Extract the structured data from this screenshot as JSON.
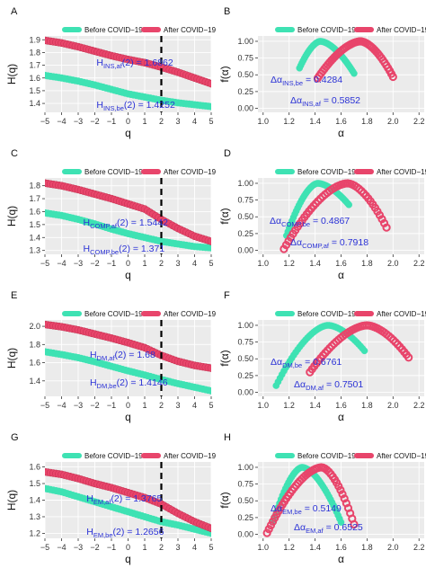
{
  "colors": {
    "before": "#3ee2b3",
    "after": "#e8456b",
    "after_stroke": "#c4304f",
    "panel_bg": "#ebebeb",
    "grid_major": "#ffffff",
    "annotation": "#2b32d6",
    "vline": "#000000"
  },
  "legend": {
    "before": "Before COVID−19",
    "after": "After COVID−19"
  },
  "chart_data": [
    {
      "panel": "A",
      "type": "line",
      "xlabel": "q",
      "ylabel": "H(q)",
      "xlim": [
        -5,
        5
      ],
      "ylim": [
        1.33,
        1.93
      ],
      "x_ticks": [
        -5,
        -4,
        -3,
        -2,
        -1,
        0,
        1,
        2,
        3,
        4,
        5
      ],
      "y_ticks": [
        1.4,
        1.5,
        1.6,
        1.7,
        1.8,
        1.9
      ],
      "vline": 2,
      "series": [
        {
          "name": "Before COVID−19",
          "x": [
            -5,
            -4,
            -3,
            -2,
            -1,
            0,
            1,
            2,
            3,
            4,
            5
          ],
          "values": [
            1.62,
            1.6,
            1.575,
            1.545,
            1.51,
            1.475,
            1.45,
            1.425,
            1.405,
            1.39,
            1.375
          ]
        },
        {
          "name": "After COVID−19",
          "x": [
            -5,
            -4,
            -3,
            -2,
            -1,
            0,
            1,
            2,
            3,
            4,
            5
          ],
          "values": [
            1.895,
            1.875,
            1.845,
            1.81,
            1.775,
            1.745,
            1.72,
            1.685,
            1.645,
            1.6,
            1.555
          ]
        }
      ],
      "annotations": [
        {
          "main": "H",
          "sub": "INS,af",
          "rest": "(2) = 1.6862"
        },
        {
          "main": "H",
          "sub": "INS,be",
          "rest": "(2) = 1.4252"
        }
      ]
    },
    {
      "panel": "B",
      "type": "scatter",
      "xlabel": "α",
      "ylabel": "f(α)",
      "xlim": [
        0.96,
        2.24
      ],
      "ylim": [
        -0.06,
        1.08
      ],
      "x_ticks": [
        1.0,
        1.2,
        1.4,
        1.6,
        1.8,
        2.0,
        2.2
      ],
      "x_tick_labels": [
        "1.0",
        "1.2",
        "1.4",
        "1.6",
        "1.8",
        "2.0",
        "2.2"
      ],
      "y_ticks": [
        0.0,
        0.25,
        0.5,
        0.75,
        1.0
      ],
      "y_tick_labels": [
        "0.00",
        "0.25",
        "0.50",
        "0.75",
        "1.00"
      ],
      "series": [
        {
          "name": "Before COVID−19",
          "alpha_min": 1.28,
          "alpha_peak": 1.44,
          "alpha_max": 1.7,
          "f_left": 0.6,
          "f_right": 0.52
        },
        {
          "name": "After COVID−19",
          "alpha_min": 1.42,
          "alpha_peak": 1.75,
          "alpha_max": 2.0,
          "f_left": 0.45,
          "f_right": 0.47
        }
      ],
      "annotations": [
        {
          "main": "Δα",
          "sub": "INS,be",
          "rest": " = 0.4284"
        },
        {
          "main": "Δα",
          "sub": "INS,af",
          "rest": " = 0.5852"
        }
      ]
    },
    {
      "panel": "C",
      "type": "line",
      "xlabel": "q",
      "ylabel": "H(q)",
      "xlim": [
        -5,
        5
      ],
      "ylim": [
        1.27,
        1.86
      ],
      "x_ticks": [
        -5,
        -4,
        -3,
        -2,
        -1,
        0,
        1,
        2,
        3,
        4,
        5
      ],
      "y_ticks": [
        1.3,
        1.4,
        1.5,
        1.6,
        1.7,
        1.8
      ],
      "vline": 2,
      "series": [
        {
          "name": "Before COVID−19",
          "x": [
            -5,
            -4,
            -3,
            -2,
            -1,
            0,
            1,
            2,
            3,
            4,
            5
          ],
          "values": [
            1.59,
            1.57,
            1.54,
            1.505,
            1.465,
            1.43,
            1.4,
            1.37,
            1.35,
            1.33,
            1.32
          ]
        },
        {
          "name": "After COVID−19",
          "x": [
            -5,
            -4,
            -3,
            -2,
            -1,
            0,
            1,
            2,
            3,
            4,
            5
          ],
          "values": [
            1.82,
            1.8,
            1.77,
            1.735,
            1.7,
            1.66,
            1.62,
            1.54,
            1.47,
            1.41,
            1.37
          ]
        }
      ],
      "annotations": [
        {
          "main": "H",
          "sub": "COMP,af",
          "rest": "(2) = 1.5442"
        },
        {
          "main": "H",
          "sub": "COMP,be",
          "rest": "(2) = 1.371"
        }
      ]
    },
    {
      "panel": "D",
      "type": "scatter",
      "xlabel": "α",
      "ylabel": "f(α)",
      "xlim": [
        0.96,
        2.24
      ],
      "ylim": [
        -0.06,
        1.08
      ],
      "x_ticks": [
        1.0,
        1.2,
        1.4,
        1.6,
        1.8,
        2.0,
        2.2
      ],
      "x_tick_labels": [
        "1.0",
        "1.2",
        "1.4",
        "1.6",
        "1.8",
        "2.0",
        "2.2"
      ],
      "y_ticks": [
        0.0,
        0.25,
        0.5,
        0.75,
        1.0
      ],
      "y_tick_labels": [
        "0.00",
        "0.25",
        "0.50",
        "0.75",
        "1.00"
      ],
      "series": [
        {
          "name": "Before COVID−19",
          "alpha_min": 1.18,
          "alpha_peak": 1.42,
          "alpha_max": 1.66,
          "f_left": 0.22,
          "f_right": 0.68
        },
        {
          "name": "After COVID−19",
          "alpha_min": 1.16,
          "alpha_peak": 1.65,
          "alpha_max": 1.95,
          "f_left": 0.02,
          "f_right": 0.34
        }
      ],
      "annotations": [
        {
          "main": "Δα",
          "sub": "COMP,be",
          "rest": " = 0.4867"
        },
        {
          "main": "Δα",
          "sub": "COMP,af",
          "rest": " = 0.7918"
        }
      ]
    },
    {
      "panel": "E",
      "type": "line",
      "xlabel": "q",
      "ylabel": "H(q)",
      "xlim": [
        -5,
        5
      ],
      "ylim": [
        1.23,
        2.07
      ],
      "x_ticks": [
        -5,
        -4,
        -3,
        -2,
        -1,
        0,
        1,
        2,
        3,
        4,
        5
      ],
      "y_ticks": [
        1.4,
        1.6,
        1.8,
        2.0
      ],
      "y_tick_labels": [
        "1.4",
        "1.6",
        "1.8",
        "2.0"
      ],
      "vline": 2,
      "series": [
        {
          "name": "Before COVID−19",
          "x": [
            -5,
            -4,
            -3,
            -2,
            -1,
            0,
            1,
            2,
            3,
            4,
            5
          ],
          "values": [
            1.72,
            1.69,
            1.655,
            1.61,
            1.56,
            1.51,
            1.465,
            1.415,
            1.37,
            1.33,
            1.29
          ]
        },
        {
          "name": "After COVID−19",
          "x": [
            -5,
            -4,
            -3,
            -2,
            -1,
            0,
            1,
            2,
            3,
            4,
            5
          ],
          "values": [
            2.02,
            1.995,
            1.96,
            1.915,
            1.87,
            1.82,
            1.765,
            1.68,
            1.615,
            1.57,
            1.54
          ]
        }
      ],
      "annotations": [
        {
          "main": "H",
          "sub": "DM,af",
          "rest": "(2) = 1.68"
        },
        {
          "main": "H",
          "sub": "DM,be",
          "rest": "(2) = 1.4146"
        }
      ]
    },
    {
      "panel": "F",
      "type": "scatter",
      "xlabel": "α",
      "ylabel": "f(α)",
      "xlim": [
        0.96,
        2.24
      ],
      "ylim": [
        -0.06,
        1.08
      ],
      "x_ticks": [
        1.0,
        1.2,
        1.4,
        1.6,
        1.8,
        2.0,
        2.2
      ],
      "x_tick_labels": [
        "1.0",
        "1.2",
        "1.4",
        "1.6",
        "1.8",
        "2.0",
        "2.2"
      ],
      "y_ticks": [
        0.0,
        0.25,
        0.5,
        0.75,
        1.0
      ],
      "y_tick_labels": [
        "0.00",
        "0.25",
        "0.50",
        "0.75",
        "1.00"
      ],
      "series": [
        {
          "name": "Before COVID−19",
          "alpha_min": 1.1,
          "alpha_peak": 1.5,
          "alpha_max": 1.78,
          "f_left": 0.1,
          "f_right": 0.62
        },
        {
          "name": "After COVID−19",
          "alpha_min": 1.36,
          "alpha_peak": 1.8,
          "alpha_max": 2.12,
          "f_left": 0.3,
          "f_right": 0.52
        }
      ],
      "annotations": [
        {
          "main": "Δα",
          "sub": "DM,be",
          "rest": " = 0.6761"
        },
        {
          "main": "Δα",
          "sub": "DM,af",
          "rest": " = 0.7501"
        }
      ]
    },
    {
      "panel": "G",
      "type": "line",
      "xlabel": "q",
      "ylabel": "H(q)",
      "xlim": [
        -5,
        5
      ],
      "ylim": [
        1.17,
        1.63
      ],
      "x_ticks": [
        -5,
        -4,
        -3,
        -2,
        -1,
        0,
        1,
        2,
        3,
        4,
        5
      ],
      "y_ticks": [
        1.2,
        1.3,
        1.4,
        1.5,
        1.6
      ],
      "vline": 2,
      "series": [
        {
          "name": "Before COVID−19",
          "x": [
            -5,
            -4,
            -3,
            -2,
            -1,
            0,
            1,
            2,
            3,
            4,
            5
          ],
          "values": [
            1.47,
            1.45,
            1.42,
            1.39,
            1.36,
            1.33,
            1.3,
            1.27,
            1.25,
            1.225,
            1.2
          ]
        },
        {
          "name": "After COVID−19",
          "x": [
            -5,
            -4,
            -3,
            -2,
            -1,
            0,
            1,
            2,
            3,
            4,
            5
          ],
          "values": [
            1.57,
            1.555,
            1.53,
            1.5,
            1.475,
            1.445,
            1.415,
            1.3765,
            1.32,
            1.27,
            1.23
          ]
        }
      ],
      "annotations": [
        {
          "main": "H",
          "sub": "EM,af",
          "rest": "(2) = 1.3765"
        },
        {
          "main": "H",
          "sub": "EM,be",
          "rest": "(2) = 1.2656"
        }
      ]
    },
    {
      "panel": "H",
      "type": "scatter",
      "xlabel": "α",
      "ylabel": "f(α)",
      "xlim": [
        0.96,
        2.24
      ],
      "ylim": [
        -0.06,
        1.08
      ],
      "x_ticks": [
        1.0,
        1.2,
        1.4,
        1.6,
        1.8,
        2.0,
        2.2
      ],
      "x_tick_labels": [
        "1.0",
        "1.2",
        "1.4",
        "1.6",
        "1.8",
        "2.0",
        "2.2"
      ],
      "y_ticks": [
        0.0,
        0.25,
        0.5,
        0.75,
        1.0
      ],
      "y_tick_labels": [
        "0.00",
        "0.25",
        "0.50",
        "0.75",
        "1.00"
      ],
      "series": [
        {
          "name": "Before COVID−19",
          "alpha_min": 1.08,
          "alpha_peak": 1.3,
          "alpha_max": 1.6,
          "f_left": 0.2,
          "f_right": 0.18
        },
        {
          "name": "After COVID−19",
          "alpha_min": 1.03,
          "alpha_peak": 1.45,
          "alpha_max": 1.7,
          "f_left": 0.02,
          "f_right": 0.15
        }
      ],
      "annotations": [
        {
          "main": "Δα",
          "sub": "EM,be",
          "rest": " = 0.5149"
        },
        {
          "main": "Δα",
          "sub": "EM,af",
          "rest": " = 0.6525"
        }
      ]
    }
  ]
}
